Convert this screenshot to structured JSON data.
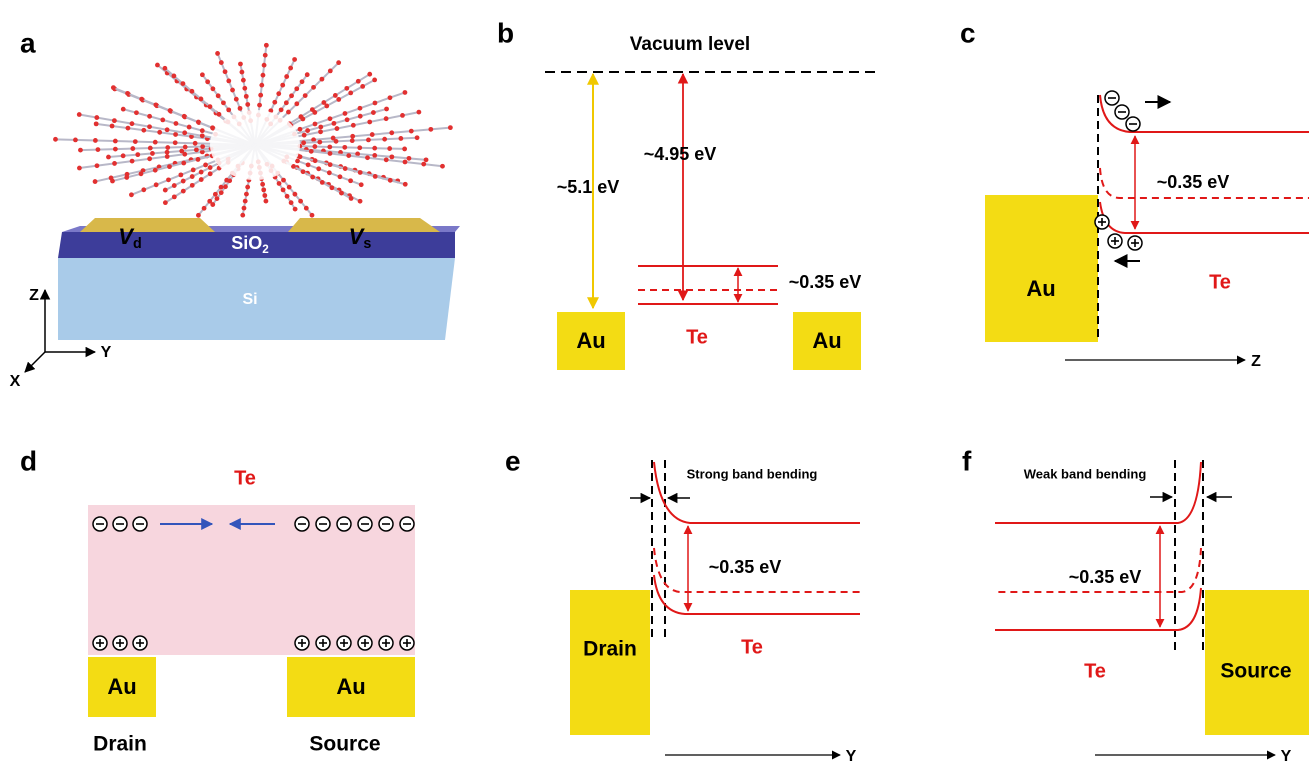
{
  "panels": [
    {
      "label": "a",
      "drain": {
        "symbol": "V",
        "subscript": "d"
      },
      "oxide": {
        "formula": "SiO",
        "subscript": "2"
      },
      "source": {
        "symbol": "V",
        "subscript": "s"
      },
      "substrate": "Si",
      "axes": [
        "Z",
        "Y",
        "X"
      ]
    },
    {
      "label": "b",
      "title": "Vacuum level",
      "au_work_function": "~5.1 eV",
      "te_work_function": "~4.95 eV",
      "band_gap": "~0.35 eV",
      "left_metal": "Au",
      "semiconductor": "Te",
      "right_metal": "Au"
    },
    {
      "label": "c",
      "band_gap": "~0.35 eV",
      "metal": "Au",
      "semiconductor": "Te",
      "axis": "Z"
    },
    {
      "label": "d",
      "semiconductor": "Te",
      "left_metal": "Au",
      "right_metal": "Au",
      "left_contact": "Drain",
      "right_contact": "Source"
    },
    {
      "label": "e",
      "title": "Strong band bending",
      "band_gap": "~0.35 eV",
      "metal": "Drain",
      "semiconductor": "Te",
      "axis": "Y"
    },
    {
      "label": "f",
      "title": "Weak band bending",
      "band_gap": "~0.35 eV",
      "metal": "Source",
      "semiconductor": "Te",
      "axis": "Y"
    }
  ]
}
